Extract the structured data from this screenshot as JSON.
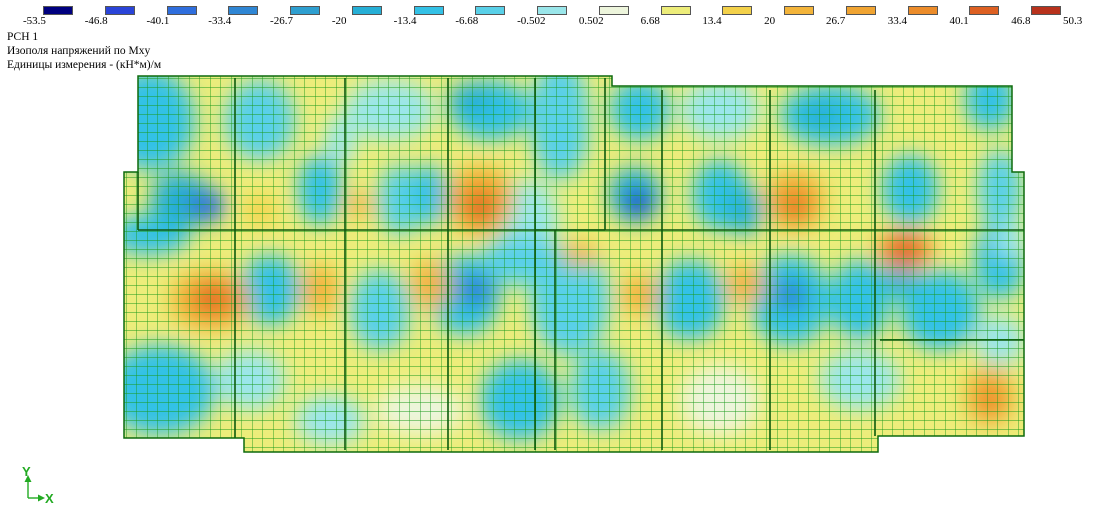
{
  "legend": {
    "title": "",
    "values": [
      "-53.5",
      "-46.8",
      "-40.1",
      "-33.4",
      "-26.7",
      "-20",
      "-13.4",
      "-6.68",
      "-0.502",
      "0.502",
      "6.68",
      "13.4",
      "20",
      "26.7",
      "33.4",
      "40.1",
      "46.8",
      "50.3"
    ],
    "colors": [
      "#00007f",
      "#2a44d8",
      "#2f6edd",
      "#2f86d4",
      "#2e9fd0",
      "#26afd6",
      "#33c1e6",
      "#59d0e8",
      "#9ae6ea",
      "#edf5dc",
      "#eded7a",
      "#f3d14a",
      "#f3b43a",
      "#f0a432",
      "#ec8c2a",
      "#dd6022",
      "#b8321c",
      "#7f0f14"
    ]
  },
  "header": {
    "load_case": "РСН 1",
    "result": "Изополя напряжений по Mxy",
    "units": "Единицы измерения - (кН*м)/м"
  },
  "axes": {
    "y_label": "Y",
    "x_label": "X",
    "color": "#22aa22"
  }
}
